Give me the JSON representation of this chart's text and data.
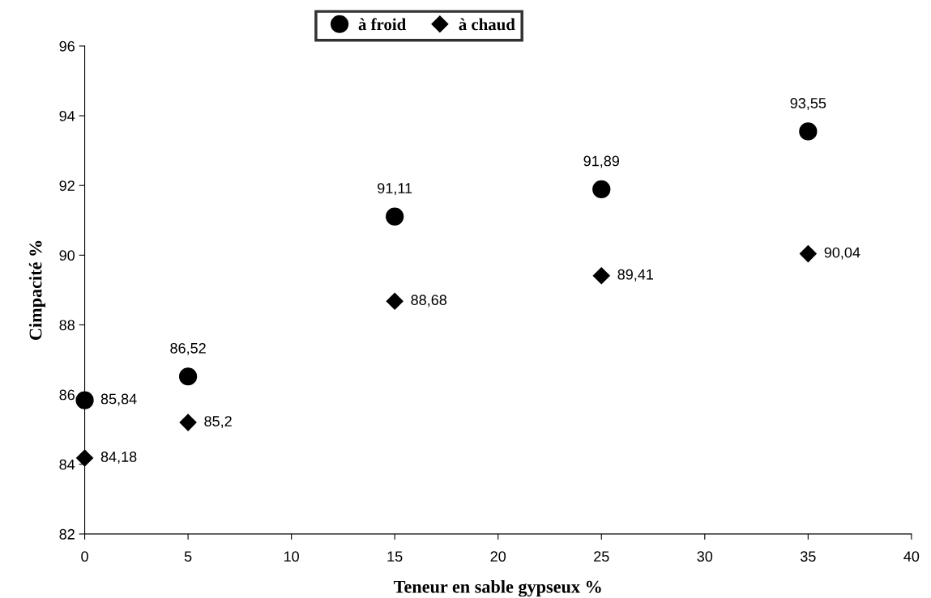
{
  "chart_data": {
    "type": "scatter",
    "xlabel": "Teneur en sable gypseux %",
    "ylabel": "Cimpacité %",
    "x": [
      0,
      5,
      15,
      25,
      35
    ],
    "series": [
      {
        "name": "à froid",
        "color": "#000000",
        "marker": "circle",
        "values": [
          85.84,
          86.52,
          91.11,
          91.89,
          93.55
        ],
        "value_labels": [
          "85,84",
          "86,52",
          "91,11",
          "91,89",
          "93,55"
        ]
      },
      {
        "name": "à chaud",
        "color": "#000000",
        "marker": "diamond",
        "values": [
          84.18,
          85.2,
          88.68,
          89.41,
          90.04
        ],
        "value_labels": [
          "84,18",
          "85,2",
          "88,68",
          "89,41",
          "90,04"
        ]
      }
    ],
    "xlim": [
      0,
      40
    ],
    "xticks": [
      0,
      5,
      10,
      15,
      20,
      25,
      30,
      35,
      40
    ],
    "ylim": [
      82,
      96
    ],
    "yticks": [
      82,
      84,
      86,
      88,
      90,
      92,
      94,
      96
    ],
    "grid": false,
    "legend": "top"
  }
}
